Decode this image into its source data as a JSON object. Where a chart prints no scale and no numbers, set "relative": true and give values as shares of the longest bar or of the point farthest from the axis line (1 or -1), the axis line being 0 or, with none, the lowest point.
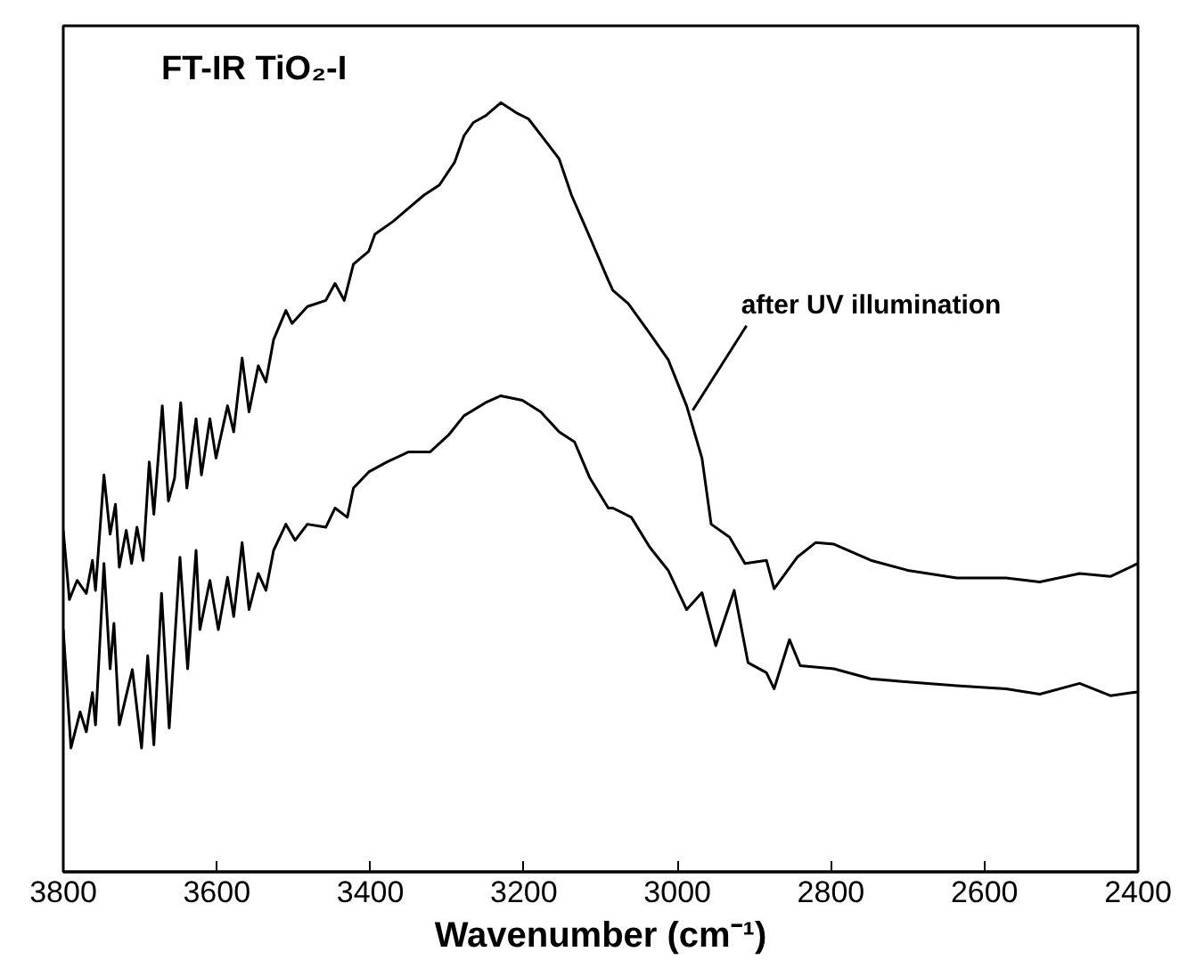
{
  "chart_data": {
    "type": "line",
    "relative": true,
    "title": "FT-IR TiO₂-I",
    "xlabel": "Wavenumber (cm⁻¹)",
    "xlim": [
      3800,
      2400
    ],
    "xticks": [
      3800,
      3600,
      3400,
      3200,
      3000,
      2800,
      2600,
      2400
    ],
    "marker": "none",
    "line_style": "solid",
    "annotations": [
      {
        "text": "after UV illumination",
        "x": 2980,
        "y": 0.6
      }
    ],
    "series": [
      {
        "color": "#000000",
        "x": [
          3800,
          3792,
          3782,
          3770,
          3762,
          3758,
          3747,
          3739,
          3732,
          3727,
          3718,
          3711,
          3704,
          3696,
          3688,
          3682,
          3671,
          3663,
          3655,
          3647,
          3639,
          3627,
          3620,
          3609,
          3601,
          3586,
          3578,
          3567,
          3558,
          3546,
          3536,
          3526,
          3510,
          3502,
          3482,
          3458,
          3446,
          3434,
          3422,
          3402,
          3394,
          3370,
          3350,
          3330,
          3310,
          3290,
          3278,
          3266,
          3250,
          3230,
          3210,
          3194,
          3174,
          3154,
          3138,
          3114,
          3090,
          3084,
          3064,
          3036,
          3012,
          2988,
          2968,
          2956,
          2932,
          2912,
          2884,
          2874,
          2844,
          2820,
          2796,
          2748,
          2700,
          2636,
          2572,
          2528,
          2476,
          2436,
          2400
        ],
        "values": [
          0.444,
          0.354,
          0.379,
          0.362,
          0.405,
          0.366,
          0.516,
          0.439,
          0.478,
          0.396,
          0.444,
          0.401,
          0.448,
          0.405,
          0.533,
          0.465,
          0.606,
          0.482,
          0.512,
          0.61,
          0.499,
          0.589,
          0.516,
          0.589,
          0.538,
          0.606,
          0.572,
          0.668,
          0.598,
          0.658,
          0.637,
          0.692,
          0.73,
          0.713,
          0.735,
          0.743,
          0.765,
          0.743,
          0.79,
          0.807,
          0.829,
          0.846,
          0.863,
          0.88,
          0.893,
          0.923,
          0.957,
          0.974,
          0.983,
          1.0,
          0.987,
          0.979,
          0.953,
          0.927,
          0.88,
          0.825,
          0.769,
          0.756,
          0.739,
          0.7,
          0.666,
          0.606,
          0.538,
          0.452,
          0.435,
          0.401,
          0.405,
          0.368,
          0.409,
          0.428,
          0.426,
          0.405,
          0.392,
          0.382,
          0.382,
          0.377,
          0.388,
          0.384,
          0.401
        ]
      },
      {
        "color": "#000000",
        "x": [
          3800,
          3790,
          3778,
          3770,
          3762,
          3758,
          3747,
          3739,
          3734,
          3727,
          3710,
          3698,
          3690,
          3682,
          3672,
          3662,
          3648,
          3638,
          3627,
          3622,
          3609,
          3598,
          3586,
          3578,
          3567,
          3558,
          3546,
          3536,
          3526,
          3510,
          3498,
          3482,
          3458,
          3446,
          3430,
          3422,
          3402,
          3378,
          3350,
          3322,
          3298,
          3278,
          3250,
          3230,
          3202,
          3178,
          3154,
          3134,
          3114,
          3090,
          3084,
          3060,
          3036,
          3012,
          2988,
          2968,
          2950,
          2926,
          2908,
          2884,
          2874,
          2854,
          2840,
          2796,
          2748,
          2700,
          2636,
          2572,
          2528,
          2476,
          2436,
          2400
        ],
        "values": [
          0.315,
          0.161,
          0.208,
          0.182,
          0.233,
          0.191,
          0.401,
          0.264,
          0.323,
          0.191,
          0.263,
          0.161,
          0.281,
          0.165,
          0.362,
          0.187,
          0.409,
          0.264,
          0.418,
          0.315,
          0.379,
          0.315,
          0.383,
          0.332,
          0.428,
          0.341,
          0.388,
          0.366,
          0.418,
          0.452,
          0.431,
          0.452,
          0.448,
          0.473,
          0.461,
          0.499,
          0.52,
          0.533,
          0.546,
          0.546,
          0.568,
          0.593,
          0.61,
          0.619,
          0.613,
          0.598,
          0.572,
          0.559,
          0.512,
          0.473,
          0.473,
          0.461,
          0.422,
          0.392,
          0.341,
          0.363,
          0.294,
          0.366,
          0.272,
          0.259,
          0.238,
          0.302,
          0.268,
          0.264,
          0.251,
          0.247,
          0.242,
          0.238,
          0.231,
          0.245,
          0.229,
          0.234
        ]
      }
    ]
  }
}
